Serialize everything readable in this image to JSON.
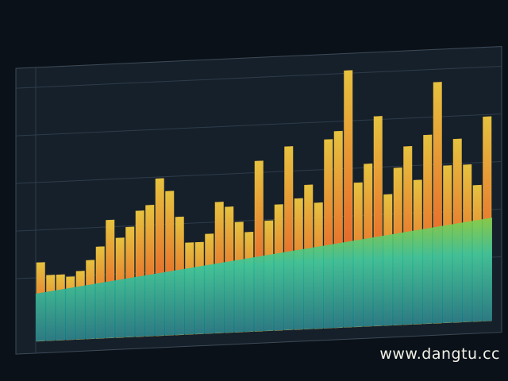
{
  "chart_data": {
    "type": "bar",
    "categories": [
      null,
      null,
      null,
      null,
      null,
      null,
      null,
      null,
      null,
      null,
      null,
      null,
      null,
      null,
      null,
      null,
      null,
      null,
      null,
      null,
      null,
      null,
      null,
      null,
      null,
      null,
      null,
      null,
      null,
      null,
      null,
      null,
      null,
      null,
      null,
      null,
      null,
      null,
      null,
      null,
      null,
      null,
      null,
      null,
      null,
      null
    ],
    "values": [
      30,
      25,
      25,
      24,
      26,
      30,
      35,
      45,
      38,
      42,
      48,
      50,
      60,
      55,
      45,
      35,
      35,
      38,
      50,
      48,
      42,
      38,
      65,
      42,
      48,
      70,
      50,
      55,
      48,
      72,
      75,
      98,
      55,
      62,
      80,
      50,
      60,
      68,
      55,
      72,
      92,
      60,
      70,
      60,
      52,
      78
    ],
    "color": "#e6b83c",
    "ylim": [
      0,
      100
    ],
    "watermark": "www.dangtu.cc"
  }
}
